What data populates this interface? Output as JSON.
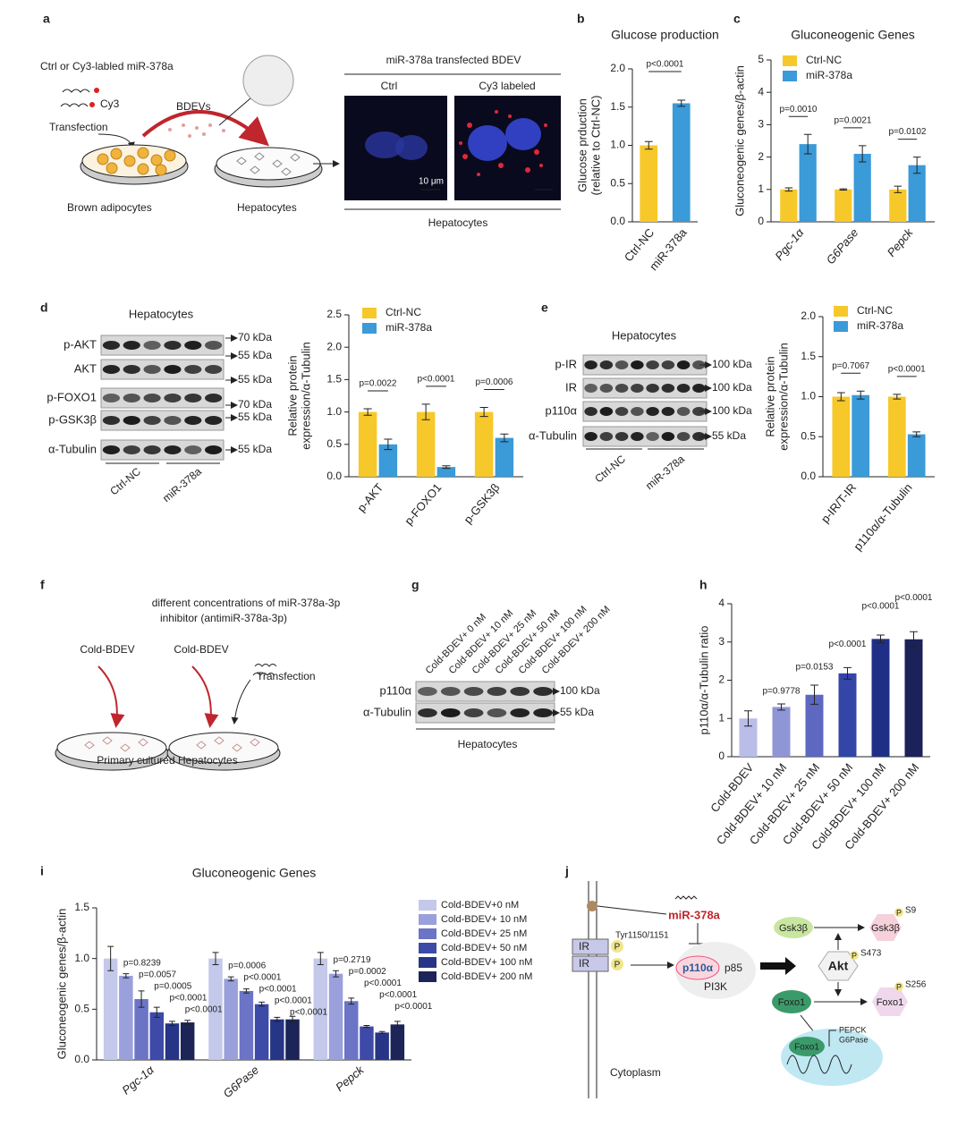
{
  "panel_letters": [
    "a",
    "b",
    "c",
    "d",
    "e",
    "f",
    "g",
    "h",
    "i",
    "j"
  ],
  "panel_a": {
    "top_label": "Ctrl or Cy3-labled miR-378a",
    "cy3": "Cy3",
    "transfection": "Transfection",
    "bdevs": "BDEVs",
    "brown_adipocytes": "Brown adipocytes",
    "hepatocytes": "Hepatocytes",
    "image_title": "miR-378a transfected BDEV",
    "ctrl": "Ctrl",
    "cy3_labeled": "Cy3 labeled",
    "scale": "10 μm",
    "image_footer": "Hepatocytes"
  },
  "blot_d": {
    "title": "Hepatocytes",
    "rows": [
      "p-AKT",
      "AKT",
      "p-FOXO1",
      "p-GSK3β",
      "α-Tubulin"
    ],
    "markers": [
      "70 kDa",
      "55 kDa",
      "55 kDa",
      "70 kDa",
      "55 kDa",
      "55 kDa"
    ],
    "groups": [
      "Ctrl-NC",
      "miR-378a"
    ]
  },
  "blot_e": {
    "title": "Hepatocytes",
    "rows": [
      "p-IR",
      "IR",
      "p110α",
      "α-Tubulin"
    ],
    "markers": [
      "100 kDa",
      "100 kDa",
      "100 kDa",
      "55 kDa"
    ],
    "groups": [
      "Ctrl-NC",
      "miR-378a"
    ]
  },
  "panel_f": {
    "heading": [
      "different concentrations of miR-378a-3p",
      "inhibitor (antimiR-378a-3p)"
    ],
    "left_label": "Cold-BDEV",
    "right_label": "Cold-BDEV",
    "transfection": "Transfection",
    "footer": "Primary cultured Hepatocytes"
  },
  "blot_g": {
    "lanes": [
      "Cold-BDEV+ 0 nM",
      "Cold-BDEV+ 10 nM",
      "Cold-BDEV+ 25 nM",
      "Cold-BDEV+ 50 nM",
      "Cold-BDEV+ 100 nM",
      "Cold-BDEV+ 200 nM"
    ],
    "rows": [
      "p110α",
      "α-Tubulin"
    ],
    "markers": [
      "100 kDa",
      "55 kDa"
    ],
    "footer": "Hepatocytes"
  },
  "panel_j": {
    "mirna": "miR-378a",
    "ir": [
      "IR",
      "IR"
    ],
    "p_ir": [
      "P",
      "P"
    ],
    "tyr": "Tyr1150/1151",
    "p110": "p110α",
    "p85": "p85",
    "pi3k": "PI3K",
    "gsk3b": "Gsk3β",
    "p_gsk3b": "Gsk3β",
    "p_s9": "P",
    "s9": "S9",
    "akt": "Akt",
    "p_s473": "P",
    "s473": "S473",
    "foxo1": "Foxo1",
    "p_foxo1": "Foxo1",
    "p_s256": "P",
    "s256": "S256",
    "nuclear_foxo1": "Foxo1",
    "targets": [
      "PEPCK",
      "G6Pase"
    ],
    "cytoplasm": "Cytoplasm"
  },
  "chart_data": [
    {
      "type": "bar",
      "title": "Glucose production",
      "y_label": [
        "Glucose prduction",
        "(relative to Ctrl-NC)"
      ],
      "categories": [
        "Ctrl-NC",
        "miR-378a"
      ],
      "series": [
        {
          "colors": [
            "#f7c829",
            "#3b9ad8"
          ],
          "values": [
            1.0,
            1.55
          ],
          "errors": [
            0.05,
            0.04
          ]
        }
      ],
      "ylim": [
        0,
        2
      ],
      "yticks": [
        {
          "value": 0,
          "label": "0.0"
        },
        {
          "value": 0.5,
          "label": "0.5"
        },
        {
          "value": 1,
          "label": "1.0"
        },
        {
          "value": 1.5,
          "label": "1.5"
        },
        {
          "value": 2,
          "label": "2.0"
        }
      ],
      "p_value": "p<0.0001"
    },
    {
      "type": "bar",
      "title": "Gluconeogenic Genes",
      "y_label": [
        "Gluconeogenic genes/β-actin"
      ],
      "categories": [
        "Pgc-1α",
        "G6Pase",
        "Pepck"
      ],
      "italic_categories": true,
      "series": [
        {
          "name": "Ctrl-NC",
          "color": "#f7c829",
          "values": [
            1.0,
            1.0,
            1.0
          ],
          "errors": [
            0.05,
            0.02,
            0.1
          ]
        },
        {
          "name": "miR-378a",
          "color": "#3b9ad8",
          "values": [
            2.4,
            2.1,
            1.75
          ],
          "errors": [
            0.3,
            0.25,
            0.25
          ]
        }
      ],
      "ylim": [
        0,
        5
      ],
      "yticks": [
        0,
        1,
        2,
        3,
        4,
        5
      ],
      "legend": "upper left",
      "p_values": [
        "p=0.0010",
        "p=0.0021",
        "p=0.0102"
      ]
    },
    {
      "type": "bar",
      "y_label": [
        "Relative protein",
        "expression/α-Tubulin"
      ],
      "categories": [
        "p-AKT",
        "p-FOXO1",
        "p-GSK3β"
      ],
      "series": [
        {
          "name": "Ctrl-NC",
          "color": "#f7c829",
          "values": [
            1.0,
            1.0,
            1.0
          ],
          "errors": [
            0.05,
            0.12,
            0.07
          ]
        },
        {
          "name": "miR-378a",
          "color": "#3b9ad8",
          "values": [
            0.5,
            0.15,
            0.6
          ],
          "errors": [
            0.08,
            0.02,
            0.06
          ]
        }
      ],
      "ylim": [
        0,
        2.5
      ],
      "yticks": [
        {
          "value": 0,
          "label": "0.0"
        },
        {
          "value": 0.5,
          "label": "0.5"
        },
        {
          "value": 1,
          "label": "1.0"
        },
        {
          "value": 1.5,
          "label": "1.5"
        },
        {
          "value": 2,
          "label": "2.0"
        },
        {
          "value": 2.5,
          "label": "2.5"
        }
      ],
      "legend": "upper left",
      "p_values": [
        "p=0.0022",
        "p<0.0001",
        "p=0.0006"
      ]
    },
    {
      "type": "bar",
      "y_label": [
        "Relative protein",
        "expression/α-Tubulin"
      ],
      "categories": [
        "p-IR/T-IR",
        "p110α/α-Tubulin"
      ],
      "series": [
        {
          "name": "Ctrl-NC",
          "color": "#f7c829",
          "values": [
            1.0,
            1.0
          ],
          "errors": [
            0.05,
            0.03
          ]
        },
        {
          "name": "miR-378a",
          "color": "#3b9ad8",
          "values": [
            1.02,
            0.53
          ],
          "errors": [
            0.05,
            0.03
          ]
        }
      ],
      "ylim": [
        0,
        2
      ],
      "yticks": [
        {
          "value": 0,
          "label": "0.0"
        },
        {
          "value": 0.5,
          "label": "0.5"
        },
        {
          "value": 1,
          "label": "1.0"
        },
        {
          "value": 1.5,
          "label": "1.5"
        },
        {
          "value": 2,
          "label": "2.0"
        }
      ],
      "legend": "upper left",
      "p_values": [
        "p=0.7067",
        "p<0.0001"
      ]
    },
    {
      "type": "bar",
      "y_label": [
        "p110α/α-Tubulin ratio"
      ],
      "categories": [
        "Cold-BDEV",
        "Cold-BDEV+ 10 nM",
        "Cold-BDEV+ 25 nM",
        "Cold-BDEV+ 50 nM",
        "Cold-BDEV+ 100 nM",
        "Cold-BDEV+ 200 nM"
      ],
      "series": [
        {
          "colors": [
            "#b9bde7",
            "#8f96d6",
            "#5e68c0",
            "#3345a7",
            "#202f86",
            "#1b2259"
          ],
          "values": [
            1.0,
            1.3,
            1.62,
            2.18,
            3.08,
            3.07
          ],
          "errors": [
            0.2,
            0.08,
            0.25,
            0.15,
            0.1,
            0.2
          ]
        }
      ],
      "ylim": [
        0,
        4
      ],
      "yticks": [
        0,
        1,
        2,
        3,
        4
      ],
      "p_values": [
        null,
        "p=0.9778",
        "p=0.0153",
        "p<0.0001",
        "p<0.0001",
        "p<0.0001"
      ]
    },
    {
      "type": "bar",
      "title": "Gluconeogenic Genes",
      "y_label": [
        "Gluconeogenic genes/β-actin"
      ],
      "categories": [
        "Pgc-1α",
        "G6Pase",
        "Pepck"
      ],
      "italic_categories": true,
      "series": [
        {
          "name": "Cold-BDEV+0 nM",
          "color": "#c4c8ea",
          "values": [
            1.0,
            1.0,
            1.0
          ],
          "errors": [
            0.12,
            0.06,
            0.06
          ]
        },
        {
          "name": "Cold-BDEV+ 10 nM",
          "color": "#9aa0db",
          "values": [
            0.83,
            0.8,
            0.85
          ],
          "errors": [
            0.02,
            0.02,
            0.03
          ]
        },
        {
          "name": "Cold-BDEV+ 25 nM",
          "color": "#6c74c6",
          "values": [
            0.6,
            0.68,
            0.58
          ],
          "errors": [
            0.08,
            0.02,
            0.03
          ]
        },
        {
          "name": "Cold-BDEV+ 50 nM",
          "color": "#3d4aa8",
          "values": [
            0.47,
            0.55,
            0.33
          ],
          "errors": [
            0.05,
            0.02,
            0.01
          ]
        },
        {
          "name": "Cold-BDEV+ 100 nM",
          "color": "#263585",
          "values": [
            0.36,
            0.4,
            0.27
          ],
          "errors": [
            0.02,
            0.02,
            0.01
          ]
        },
        {
          "name": "Cold-BDEV+ 200 nM",
          "color": "#1c2458",
          "values": [
            0.37,
            0.4,
            0.35
          ],
          "errors": [
            0.02,
            0.03,
            0.03
          ]
        }
      ],
      "ylim": [
        0,
        1.5
      ],
      "yticks": [
        {
          "value": 0,
          "label": "0.0"
        },
        {
          "value": 0.5,
          "label": "0.5"
        },
        {
          "value": 1,
          "label": "1.0"
        },
        {
          "value": 1.5,
          "label": "1.5"
        }
      ],
      "legend": "right",
      "p_values": [
        [
          "p=0.8239",
          "p=0.0057",
          "p=0.0005",
          "p<0.0001",
          "p<0.0001"
        ],
        [
          "p=0.0006",
          "p<0.0001",
          "p<0.0001",
          "p<0.0001",
          "p<0.0001"
        ],
        [
          "p=0.2719",
          "p=0.0002",
          "p<0.0001",
          "p<0.0001",
          "p<0.0001"
        ]
      ]
    }
  ]
}
